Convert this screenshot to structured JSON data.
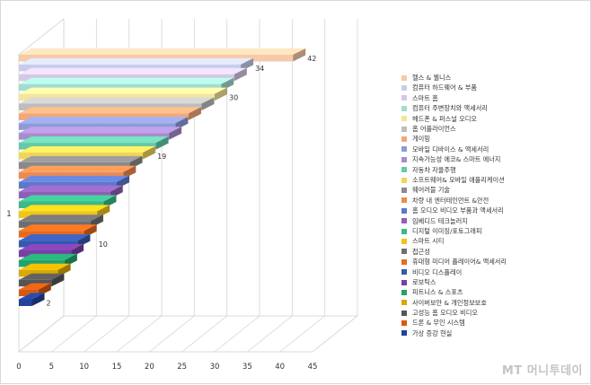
{
  "chart_data": {
    "type": "bar",
    "orientation": "horizontal",
    "three_d": true,
    "category_axis_labels": [
      "1"
    ],
    "xlim": [
      0,
      45
    ],
    "x_ticks": [
      "0",
      "5",
      "10",
      "15",
      "20",
      "25",
      "30",
      "35",
      "40",
      "45"
    ],
    "grid": true,
    "legend_position": "right",
    "data_labels": [
      {
        "text": "42",
        "value": 42,
        "bar": 0
      },
      {
        "text": "34",
        "value": 34,
        "bar": 1
      },
      {
        "text": "30",
        "value": 30,
        "bar": 4
      },
      {
        "text": "19",
        "value": 19,
        "bar": 10
      },
      {
        "text": "10",
        "value": 10,
        "bar": 19
      },
      {
        "text": "2",
        "value": 2,
        "bar": 28
      }
    ],
    "series": [
      {
        "name": "헬스 & 웰니스",
        "value": 42,
        "color": "#f6c9a8"
      },
      {
        "name": "컴퓨터 하드웨어 & 부품",
        "value": 34,
        "color": "#c7cde9"
      },
      {
        "name": "스마트 홈",
        "value": 33,
        "color": "#d4c8e6"
      },
      {
        "name": "컴퓨터 주변장치와 액세서리",
        "value": 31,
        "color": "#a3dccf"
      },
      {
        "name": "헤드폰 & 퍼스널 오디오",
        "value": 30,
        "color": "#f4e59a"
      },
      {
        "name": "홈 어플라이언스",
        "value": 28,
        "color": "#bdbdbd"
      },
      {
        "name": "게이밍",
        "value": 26,
        "color": "#f3a779"
      },
      {
        "name": "모바일 디바이스 & 액세서리",
        "value": 24,
        "color": "#8e9bd6"
      },
      {
        "name": "지속가능성 에코& 스마트 에너지",
        "value": 23,
        "color": "#a98ccf"
      },
      {
        "name": "자동차 자율주행",
        "value": 21,
        "color": "#66c9a8"
      },
      {
        "name": "소프트웨어& 모바일 애플리케이션",
        "value": 19,
        "color": "#f2d35a"
      },
      {
        "name": "웨어러블 기술",
        "value": 17,
        "color": "#8a8a8a"
      },
      {
        "name": "차량 내 엔터테인먼트 &안전",
        "value": 16,
        "color": "#ee8a4e"
      },
      {
        "name": "홈 오디오 비디오 부품과 액세서리",
        "value": 15,
        "color": "#5d78c8"
      },
      {
        "name": "임베디드 테크놀러지",
        "value": 14,
        "color": "#8f5fb8"
      },
      {
        "name": "디지털 이미징/포토그래피",
        "value": 13,
        "color": "#3cb88a"
      },
      {
        "name": "스마트 시티",
        "value": 12,
        "color": "#f0c419"
      },
      {
        "name": "접근성",
        "value": 11,
        "color": "#6e6e6e"
      },
      {
        "name": "휴대형 미디어 플레이어& 액세서리",
        "value": 10,
        "color": "#e86a1c"
      },
      {
        "name": "비디오 디스플레이",
        "value": 9,
        "color": "#3558b0"
      },
      {
        "name": "로보틱스",
        "value": 8,
        "color": "#7a3fa6"
      },
      {
        "name": "피트니스 & 스포츠",
        "value": 7,
        "color": "#22a36d"
      },
      {
        "name": "사이버보안 & 개인정보보호",
        "value": 6,
        "color": "#d8a900"
      },
      {
        "name": "고성능 홈 오디오 비디오",
        "value": 5,
        "color": "#555555"
      },
      {
        "name": "드론 & 무인 시스템",
        "value": 3,
        "color": "#d45a10"
      },
      {
        "name": "가상 증강 현실",
        "value": 2,
        "color": "#24419c"
      }
    ]
  },
  "watermark": "MT 머니투데이"
}
